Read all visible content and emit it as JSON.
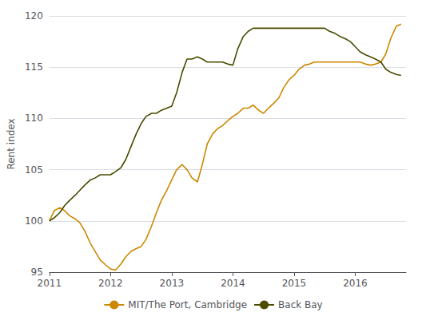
{
  "chart_data": {
    "type": "line",
    "ylabel": "Rent index",
    "x": [
      2011.0,
      2011.08,
      2011.17,
      2011.25,
      2011.33,
      2011.42,
      2011.5,
      2011.58,
      2011.67,
      2011.75,
      2011.83,
      2011.92,
      2012.0,
      2012.08,
      2012.17,
      2012.25,
      2012.33,
      2012.42,
      2012.5,
      2012.58,
      2012.67,
      2012.75,
      2012.83,
      2012.92,
      2013.0,
      2013.08,
      2013.17,
      2013.25,
      2013.33,
      2013.42,
      2013.5,
      2013.58,
      2013.67,
      2013.75,
      2013.83,
      2013.92,
      2014.0,
      2014.08,
      2014.17,
      2014.25,
      2014.33,
      2014.42,
      2014.5,
      2014.58,
      2014.67,
      2014.75,
      2014.83,
      2014.92,
      2015.0,
      2015.08,
      2015.17,
      2015.25,
      2015.33,
      2015.42,
      2015.5,
      2015.58,
      2015.67,
      2015.75,
      2015.83,
      2015.92,
      2016.0,
      2016.08,
      2016.17,
      2016.25,
      2016.33,
      2016.42,
      2016.5,
      2016.58,
      2016.67,
      2016.75
    ],
    "series": [
      {
        "name": "MIT/The Port, Cambridge",
        "color": "#CC8800",
        "values": [
          100.0,
          101.0,
          101.3,
          101.0,
          100.5,
          100.2,
          99.8,
          99.0,
          97.8,
          97.0,
          96.2,
          95.7,
          95.3,
          95.2,
          95.8,
          96.5,
          97.0,
          97.3,
          97.5,
          98.2,
          99.5,
          100.8,
          102.0,
          103.0,
          104.0,
          105.0,
          105.5,
          105.0,
          104.2,
          103.8,
          105.5,
          107.5,
          108.5,
          109.0,
          109.3,
          109.8,
          110.2,
          110.5,
          111.0,
          111.0,
          111.3,
          110.8,
          110.5,
          111.0,
          111.5,
          112.0,
          113.0,
          113.8,
          114.2,
          114.8,
          115.2,
          115.3,
          115.5,
          115.5,
          115.5,
          115.5,
          115.5,
          115.5,
          115.5,
          115.5,
          115.5,
          115.5,
          115.3,
          115.2,
          115.3,
          115.5,
          116.3,
          117.8,
          119.0,
          119.2
        ]
      },
      {
        "name": "Back Bay",
        "color": "#4A4A00",
        "values": [
          100.0,
          100.3,
          100.8,
          101.5,
          102.0,
          102.5,
          103.0,
          103.5,
          104.0,
          104.2,
          104.5,
          104.5,
          104.5,
          104.8,
          105.2,
          106.0,
          107.2,
          108.5,
          109.5,
          110.2,
          110.5,
          110.5,
          110.8,
          111.0,
          111.2,
          112.5,
          114.5,
          115.8,
          115.8,
          116.0,
          115.8,
          115.5,
          115.5,
          115.5,
          115.5,
          115.3,
          115.2,
          116.8,
          118.0,
          118.5,
          118.8,
          118.8,
          118.8,
          118.8,
          118.8,
          118.8,
          118.8,
          118.8,
          118.8,
          118.8,
          118.8,
          118.8,
          118.8,
          118.8,
          118.8,
          118.5,
          118.3,
          118.0,
          117.8,
          117.5,
          117.0,
          116.5,
          116.2,
          116.0,
          115.8,
          115.5,
          114.8,
          114.5,
          114.3,
          114.2
        ]
      }
    ],
    "xlim": [
      2011.0,
      2016.83
    ],
    "xticks": [
      2011,
      2012,
      2013,
      2014,
      2015,
      2016
    ],
    "ylim": [
      95,
      120
    ],
    "yticks": [
      95,
      100,
      105,
      110,
      115,
      120
    ],
    "grid": true,
    "legend": "bottom"
  }
}
